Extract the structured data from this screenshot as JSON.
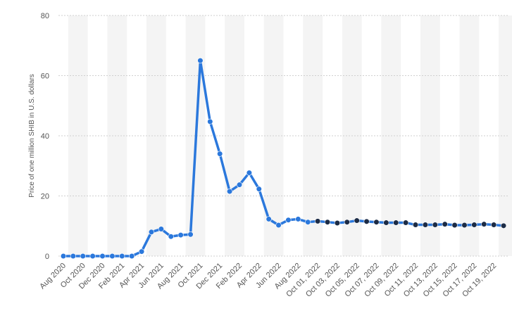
{
  "chart_data": {
    "type": "line",
    "y_label": "Price of one million SHIB in U.S. dollars",
    "categories": [
      "Aug 2020",
      null,
      "Oct 2020",
      null,
      "Dec 2020",
      null,
      "Feb 2021",
      null,
      "Apr 2021",
      null,
      "Jun 2021",
      null,
      "Aug 2021",
      null,
      "Oct 2021",
      null,
      "Dec 2021",
      null,
      "Feb 2022",
      null,
      "Apr 2022",
      null,
      "Jun 2022",
      null,
      "Aug 2022",
      null,
      "Oct 01, 2022",
      null,
      "Oct 03, 2022",
      null,
      "Oct 05, 2022",
      null,
      "Oct 07, 2022",
      null,
      "Oct 09, 2022",
      null,
      "Oct 11, 2022",
      null,
      "Oct 13, 2022",
      null,
      "Oct 15, 2022",
      null,
      "Oct 17, 2022",
      null,
      "Oct 19, 2022",
      null
    ],
    "series": [
      {
        "color": "#2b78dc",
        "values": [
          0,
          0,
          0,
          0,
          0,
          0,
          0,
          0,
          1.5,
          8,
          9,
          6.5,
          7,
          7.2,
          65,
          44.7,
          34,
          21.5,
          23.7,
          27.7,
          22.3,
          12.3,
          10.3,
          12,
          12.3,
          11.3,
          11.6,
          11.3,
          11.0,
          11.3,
          11.8,
          11.5,
          11.3,
          11.1,
          11.1,
          11.1,
          10.4,
          10.4,
          10.4,
          10.6,
          10.3,
          10.3,
          10.4,
          10.6,
          10.4,
          10.1
        ],
        "point_colors": [
          "#2b78dc",
          "#2b78dc",
          "#2b78dc",
          "#2b78dc",
          "#2b78dc",
          "#2b78dc",
          "#2b78dc",
          "#2b78dc",
          "#2b78dc",
          "#2b78dc",
          "#2b78dc",
          "#2b78dc",
          "#2b78dc",
          "#2b78dc",
          "#2b78dc",
          "#2b78dc",
          "#2b78dc",
          "#2b78dc",
          "#2b78dc",
          "#2b78dc",
          "#2b78dc",
          "#2b78dc",
          "#2b78dc",
          "#2b78dc",
          "#2b78dc",
          "#2b78dc",
          "#1c2b45",
          "#1c2b45",
          "#1c2b45",
          "#1c2b45",
          "#1c2b45",
          "#1c2b45",
          "#1c2b45",
          "#1c2b45",
          "#1c2b45",
          "#1c2b45",
          "#1c2b45",
          "#1c2b45",
          "#1c2b45",
          "#1c2b45",
          "#1c2b45",
          "#1c2b45",
          "#1c2b45",
          "#1c2b45",
          "#1c2b45",
          "#1c2b45"
        ]
      }
    ],
    "ylim": [
      0,
      80
    ],
    "yticks": [
      0,
      20,
      40,
      60,
      80
    ],
    "grid": true
  }
}
